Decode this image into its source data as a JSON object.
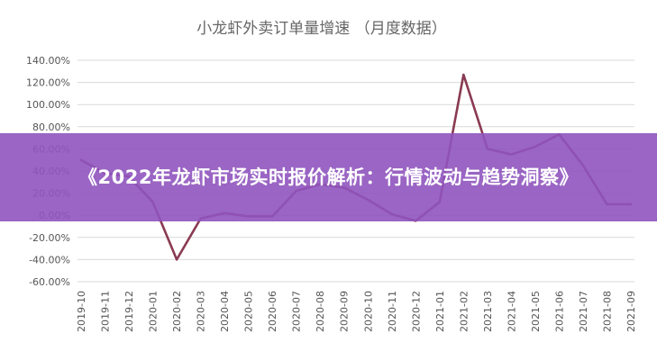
{
  "chart_data": {
    "type": "line",
    "title": "小龙虾外卖订单量增速 （月度数据）",
    "xlabel": "",
    "ylabel": "",
    "ylim": [
      -60,
      140
    ],
    "y_ticks": [
      "140.00%",
      "120.00%",
      "100.00%",
      "80.00%",
      "60.00%",
      "40.00%",
      "20.00%",
      "0.00%",
      "-20.00%",
      "-40.00%",
      "-60.00%"
    ],
    "y_tick_values": [
      140,
      120,
      100,
      80,
      60,
      40,
      20,
      0,
      -20,
      -40,
      -60
    ],
    "grid": true,
    "categories": [
      "2019-10",
      "2019-11",
      "2019-12",
      "2020-01",
      "2020-02",
      "2020-03",
      "2020-04",
      "2020-05",
      "2020-06",
      "2020-07",
      "2020-08",
      "2020-09",
      "2020-10",
      "2020-11",
      "2020-12",
      "2021-01",
      "2021-02",
      "2021-03",
      "2021-04",
      "2021-05",
      "2021-06",
      "2021-07",
      "2021-08",
      "2021-09"
    ],
    "series": [
      {
        "values": [
          50,
          38,
          35,
          12,
          -40,
          -3,
          2,
          -1,
          -1,
          22,
          28,
          25,
          14,
          1,
          -5,
          12,
          127,
          60,
          55,
          62,
          73,
          45,
          10,
          10
        ],
        "color": "#8a3a52"
      }
    ]
  },
  "overlay": {
    "banner_text": "《2022年龙虾市场实时报价解析：行情波动与趋势洞察》",
    "banner_color": "#8f54be"
  }
}
